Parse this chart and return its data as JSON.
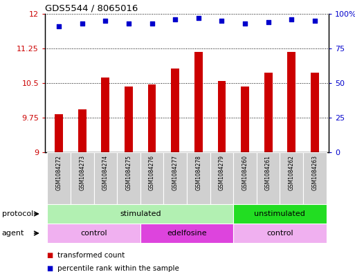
{
  "title": "GDS5544 / 8065016",
  "samples": [
    "GSM1084272",
    "GSM1084273",
    "GSM1084274",
    "GSM1084275",
    "GSM1084276",
    "GSM1084277",
    "GSM1084278",
    "GSM1084279",
    "GSM1084260",
    "GSM1084261",
    "GSM1084262",
    "GSM1084263"
  ],
  "bar_values": [
    9.83,
    9.93,
    10.62,
    10.43,
    10.47,
    10.82,
    11.18,
    10.54,
    10.42,
    10.72,
    11.18,
    10.72
  ],
  "scatter_values": [
    91,
    93,
    95,
    93,
    93,
    96,
    97,
    95,
    93,
    94,
    96,
    95
  ],
  "bar_color": "#cc0000",
  "scatter_color": "#0000cc",
  "ylim_left": [
    9,
    12
  ],
  "ylim_right": [
    0,
    100
  ],
  "yticks_left": [
    9,
    9.75,
    10.5,
    11.25,
    12
  ],
  "yticks_right": [
    0,
    25,
    50,
    75,
    100
  ],
  "ytick_labels_left": [
    "9",
    "9.75",
    "10.5",
    "11.25",
    "12"
  ],
  "ytick_labels_right": [
    "0",
    "25",
    "50",
    "75",
    "100%"
  ],
  "protocol_labels": [
    {
      "text": "stimulated",
      "start": 0,
      "end": 7,
      "color": "#b2f0b2"
    },
    {
      "text": "unstimulated",
      "start": 8,
      "end": 11,
      "color": "#22dd22"
    }
  ],
  "agent_labels": [
    {
      "text": "control",
      "start": 0,
      "end": 3,
      "color": "#f0b0f0"
    },
    {
      "text": "edelfosine",
      "start": 4,
      "end": 7,
      "color": "#dd44dd"
    },
    {
      "text": "control",
      "start": 8,
      "end": 11,
      "color": "#f0b0f0"
    }
  ],
  "legend_bar_label": "transformed count",
  "legend_scatter_label": "percentile rank within the sample",
  "protocol_arrow_label": "protocol",
  "agent_arrow_label": "agent",
  "label_box_color": "#d0d0d0"
}
